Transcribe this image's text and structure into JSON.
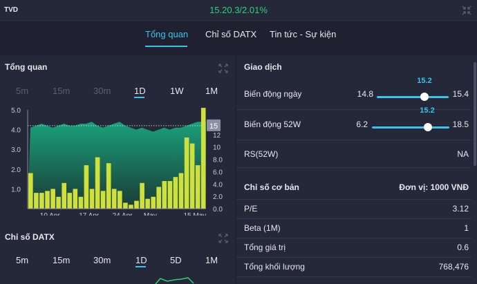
{
  "header": {
    "ticker": "TVD",
    "price_change": "15.20.3/2.01%"
  },
  "tabs": [
    {
      "label": "Tổng quan",
      "active": true
    },
    {
      "label": "Chỉ số DATX",
      "active": false
    },
    {
      "label": "Tin tức - Sự kiện",
      "active": false
    }
  ],
  "overview": {
    "title": "Tổng quan",
    "periods": [
      "5m",
      "15m",
      "30m",
      "1D",
      "1W",
      "1M"
    ],
    "selected_period": "1D"
  },
  "datx": {
    "title": "Chỉ số DATX",
    "periods": [
      "5m",
      "15m",
      "30m",
      "1D",
      "5D",
      "1M"
    ],
    "selected_period": "1D"
  },
  "chart_data": {
    "type": "bar",
    "left_axis_ticks": [
      "5.0",
      "4.0",
      "3.0",
      "2.0",
      "1.0"
    ],
    "right_axis_ticks": [
      "14",
      "12",
      "10",
      "8.0",
      "6.0",
      "4.0",
      "2.0",
      "0.0"
    ],
    "x_tick_labels": [
      "10 Apr",
      "17 Apr",
      "24 Apr",
      "May",
      "15 May"
    ],
    "current_price_label": "15",
    "volume": [
      1.8,
      0.8,
      0.8,
      0.9,
      1.0,
      0.6,
      1.3,
      0.8,
      1.0,
      0.6,
      2.2,
      1.0,
      2.6,
      0.9,
      2.3,
      1.0,
      0.9,
      0.3,
      0.2,
      0.4,
      1.3,
      0.5,
      0.6,
      1.1,
      1.4,
      1.4,
      1.6,
      1.8,
      3.6,
      3.3,
      2.2,
      5.1
    ],
    "price_area": [
      4.1,
      4.2,
      4.3,
      4.2,
      4.1,
      4.2,
      4.3,
      4.2,
      4.2,
      4.3,
      4.3,
      4.4,
      4.2,
      4.1,
      4.2,
      4.3,
      4.4,
      4.2,
      4.1,
      4.0,
      4.1,
      4.0,
      3.9,
      4.0,
      4.1,
      4.0,
      4.1,
      4.1,
      4.2,
      4.3,
      4.4,
      4.4
    ],
    "reference_price": 4.2,
    "left_ylim": [
      0,
      5
    ],
    "right_ylim": [
      0,
      16
    ]
  },
  "trading": {
    "title": "Giao dịch",
    "day_range": {
      "label": "Biến động ngày",
      "low": "14.8",
      "high": "15.4",
      "current": "15.2",
      "position": 0.67
    },
    "week52_range": {
      "label": "Biến động 52W",
      "low": "6.2",
      "high": "18.5",
      "current": "15.2",
      "position": 0.73
    },
    "rs52w": {
      "label": "RS(52W)",
      "value": "NA"
    }
  },
  "fundamentals": {
    "title": "Chỉ số cơ bản",
    "unit": "Đơn vị: 1000 VNĐ",
    "rows": [
      {
        "label": "P/E",
        "value": "3.12"
      },
      {
        "label": "Beta (1M)",
        "value": "1"
      },
      {
        "label": "Tổng giá trị",
        "value": "0.6"
      },
      {
        "label": "Tổng khối lượng",
        "value": "768,476"
      }
    ]
  },
  "colors": {
    "accent": "#3cc3f0",
    "positive": "#2fd07a",
    "bar": "#cfe03c",
    "area_top": "#1aa07a",
    "area_bottom": "#1b3a36"
  }
}
